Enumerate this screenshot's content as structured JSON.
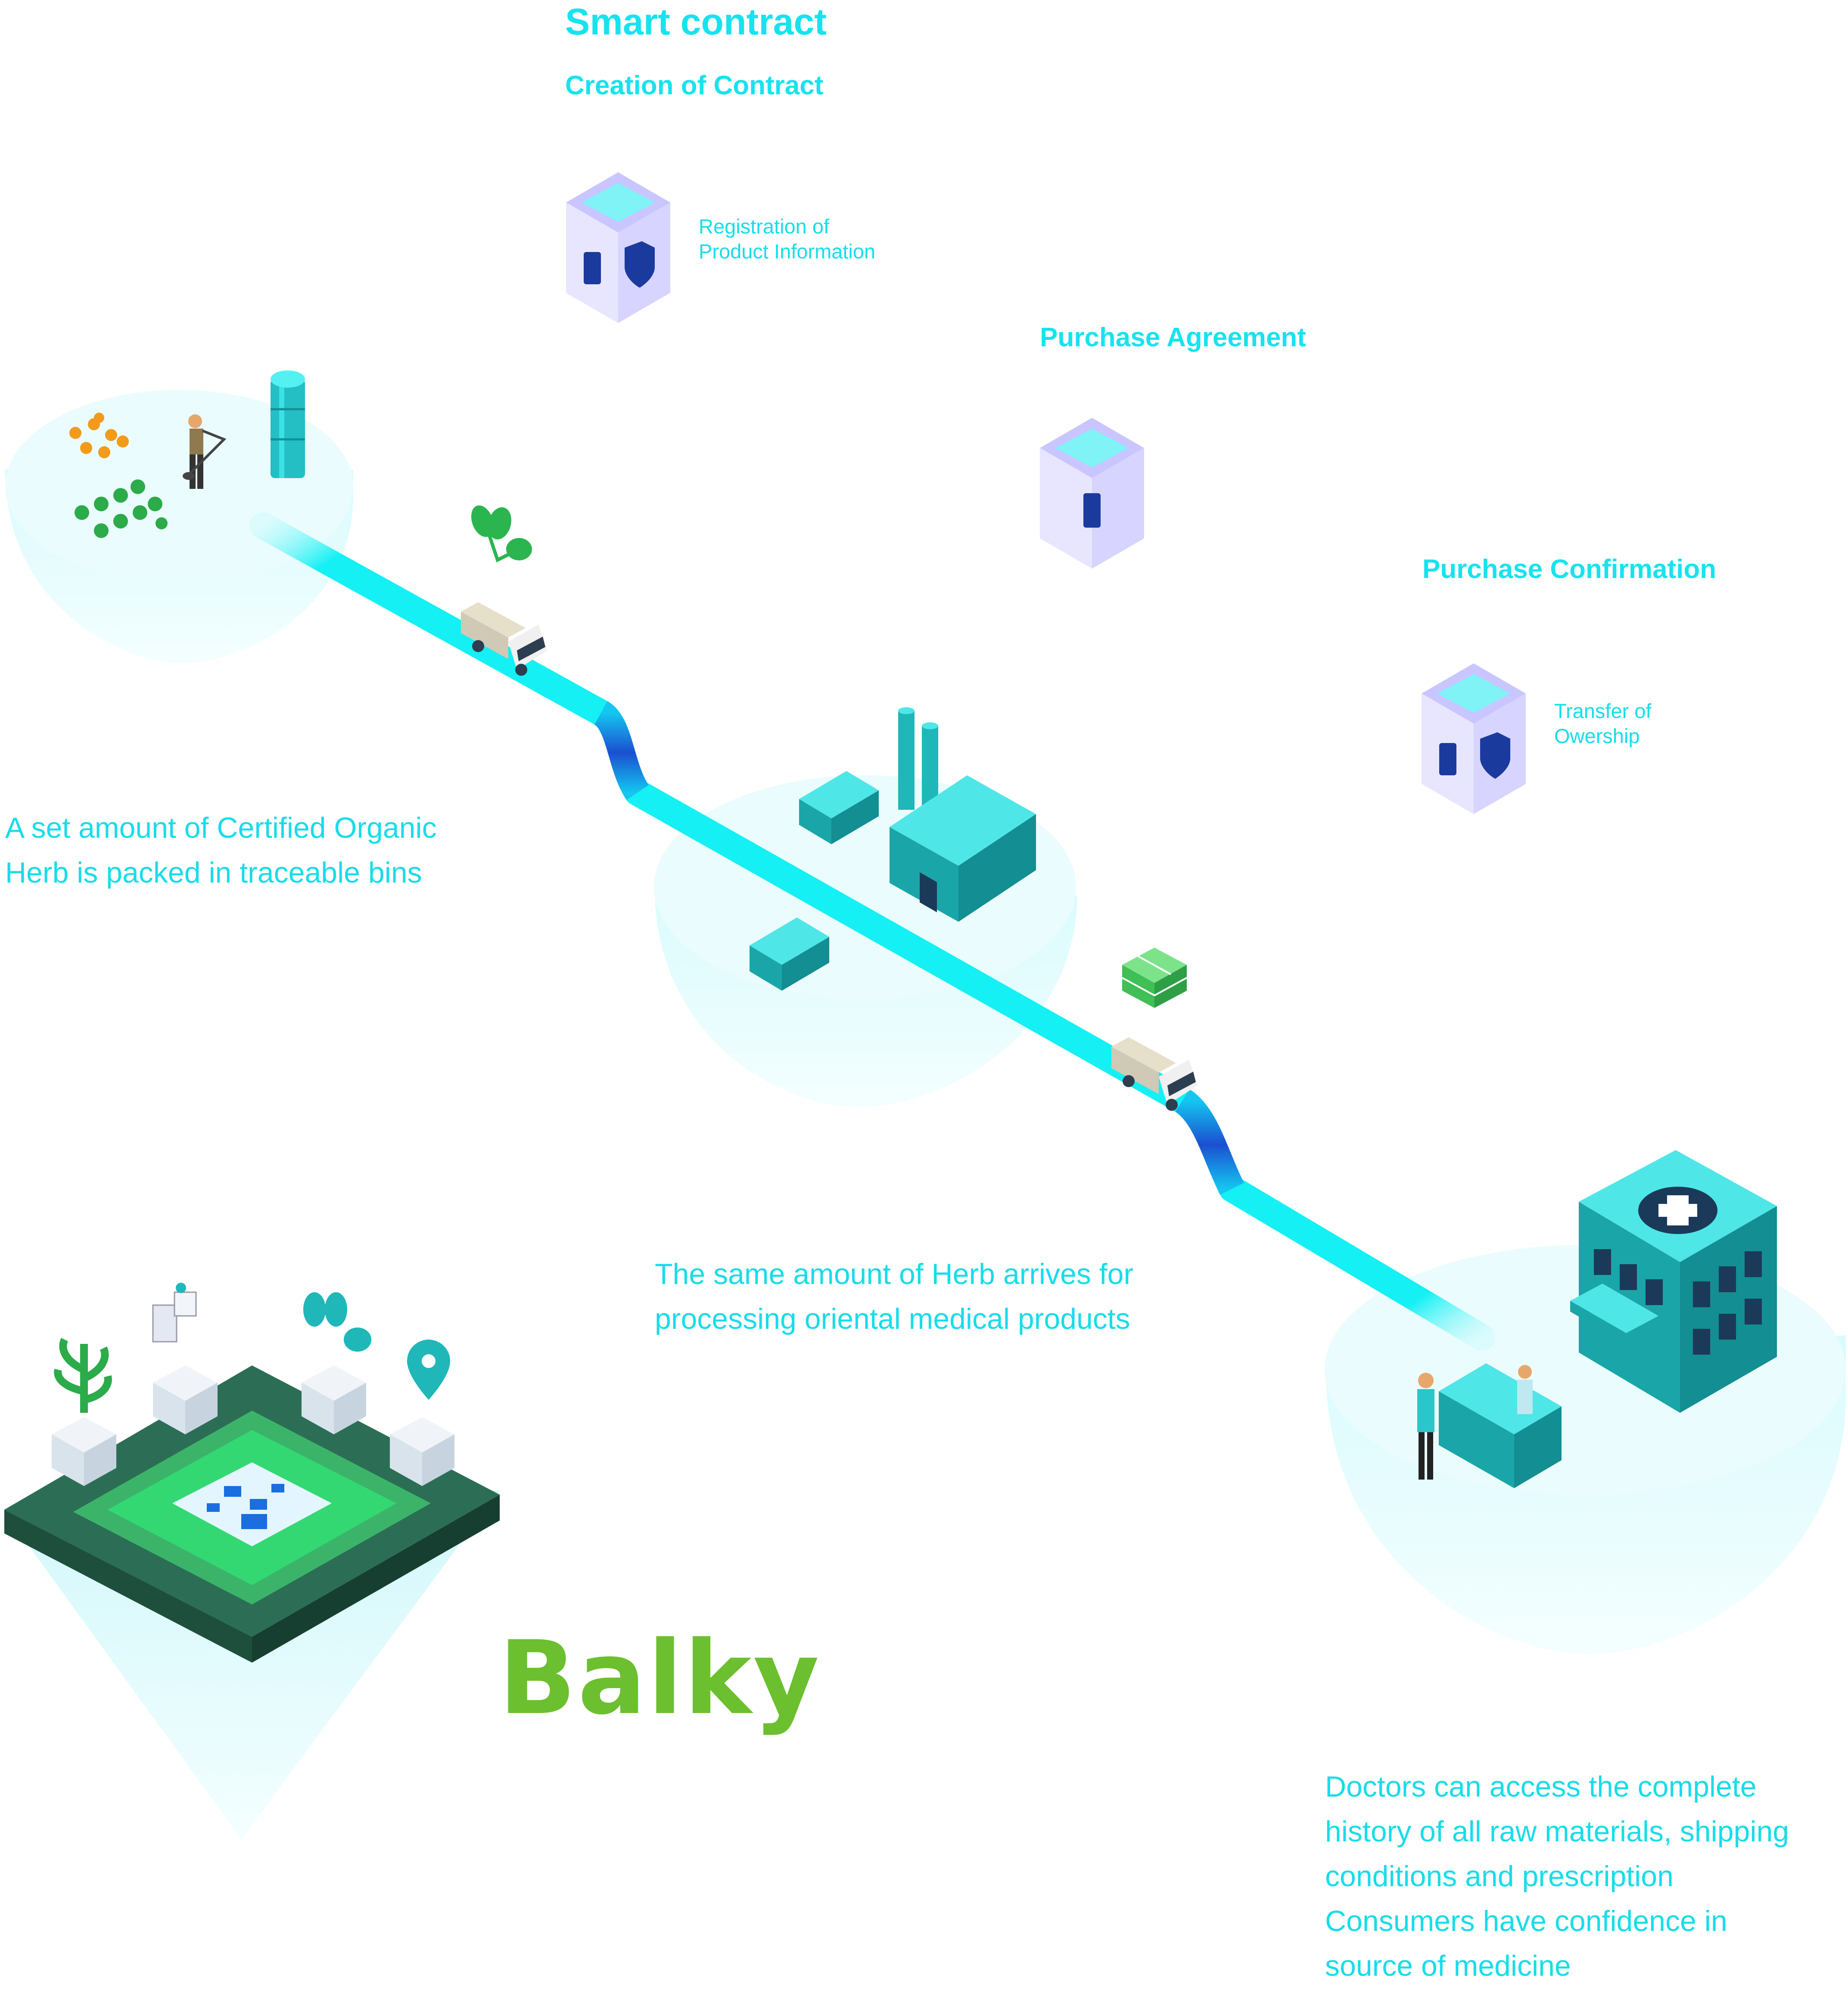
{
  "smart_contract": {
    "title": "Smart contract",
    "creation": "Creation of Contract",
    "registration_line1": "Registration of",
    "registration_line2": "Product Information",
    "purchase_agreement": "Purchase Agreement",
    "purchase_confirmation": "Purchase Confirmation",
    "transfer_line1": "Transfer of",
    "transfer_line2": "Owership"
  },
  "captions": {
    "farm": [
      "A set amount of Certified Organic",
      "Herb is packed in traceable bins"
    ],
    "factory": [
      "The same amount of Herb arrives for",
      "processing oriental medical products"
    ],
    "hospital": [
      "Doctors can access the complete",
      "history of all raw materials, shipping",
      "conditions and prescription",
      "Consumers have confidence in",
      "source of medicine"
    ]
  },
  "brand": {
    "logo_text": "Balky"
  },
  "colors": {
    "accent": "#16e3ee",
    "path": "#14f0f4",
    "path_dark": "#1b5fd6",
    "building": "#1fb7b8",
    "cube": "#a9a6ff",
    "logo": "#6cbf2e",
    "chip_green": "#2fd26a",
    "chip_dark": "#2c6e55"
  }
}
